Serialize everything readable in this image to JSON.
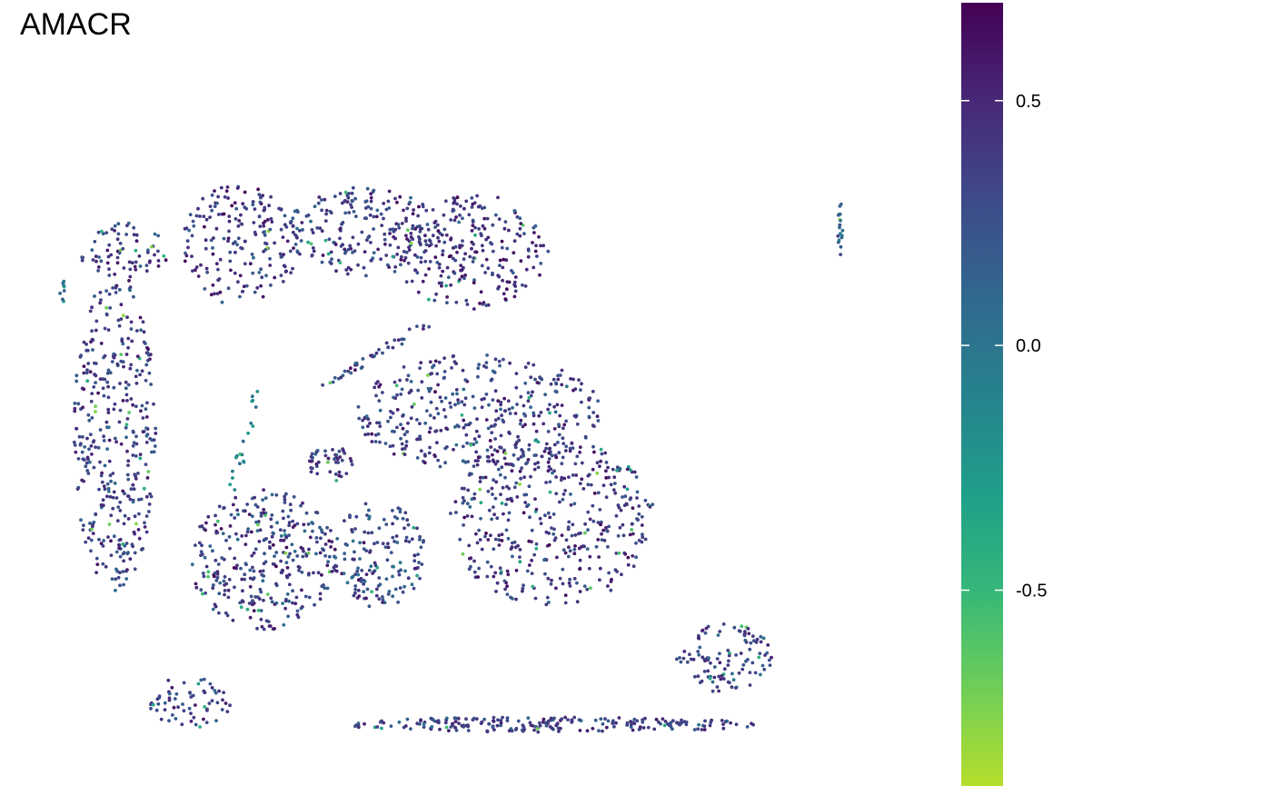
{
  "chart_data": {
    "type": "scatter",
    "title": "AMACR",
    "xlabel": "",
    "ylabel": "",
    "grid": false,
    "legend": "right",
    "colorbar": {
      "min": -0.9,
      "max": 0.7,
      "ticks": [
        {
          "value": 0.5,
          "label": "0.5"
        },
        {
          "value": 0.0,
          "label": "0.0"
        },
        {
          "value": -0.5,
          "label": "-0.5"
        }
      ],
      "colormap": "viridis-reversed",
      "colors": [
        "#440154",
        "#482878",
        "#3e4a89",
        "#31688e",
        "#26828e",
        "#1f9e89",
        "#35b779",
        "#6ece58",
        "#b5de2b"
      ]
    },
    "clusters": [
      {
        "cx": 8,
        "cy": 75,
        "rx": 5.5,
        "ry": 4.5,
        "count": 70,
        "mean": 0.38
      },
      {
        "cx": 22,
        "cy": 76,
        "rx": 7,
        "ry": 9.5,
        "count": 190,
        "mean": 0.4
      },
      {
        "cx": 37,
        "cy": 78,
        "rx": 9.5,
        "ry": 7,
        "count": 210,
        "mean": 0.35
      },
      {
        "cx": 50,
        "cy": 75,
        "rx": 9.5,
        "ry": 9,
        "count": 240,
        "mean": 0.42
      },
      {
        "cx": 6.8,
        "cy": 47,
        "rx": 5,
        "ry": 25,
        "count": 380,
        "mean": 0.35
      },
      {
        "cx": 51,
        "cy": 50,
        "rx": 15,
        "ry": 9,
        "count": 380,
        "mean": 0.35
      },
      {
        "cx": 60,
        "cy": 33,
        "rx": 12.5,
        "ry": 13,
        "count": 420,
        "mean": 0.38
      },
      {
        "cx": 25,
        "cy": 27,
        "rx": 9,
        "ry": 11,
        "count": 330,
        "mean": 0.35
      },
      {
        "cx": 39,
        "cy": 28,
        "rx": 5.5,
        "ry": 8.5,
        "count": 150,
        "mean": 0.3
      },
      {
        "cx": 33,
        "cy": 42,
        "rx": 2.8,
        "ry": 2.8,
        "count": 45,
        "mean": 0.4
      },
      {
        "cx": 81,
        "cy": 12,
        "rx": 6,
        "ry": 5.5,
        "count": 110,
        "mean": 0.35
      },
      {
        "cx": 16,
        "cy": 5,
        "rx": 5,
        "ry": 4,
        "count": 65,
        "mean": 0.35
      },
      {
        "cx": 60,
        "cy": 1.5,
        "rx": 25,
        "ry": 1.2,
        "count": 220,
        "mean": 0.35
      },
      {
        "cx": 95,
        "cy": 79,
        "rx": 0.3,
        "ry": 5,
        "count": 18,
        "mean": 0.1
      },
      {
        "cx": 0.4,
        "cy": 69,
        "rx": 0.3,
        "ry": 2.5,
        "count": 8,
        "mean": 0.0
      }
    ],
    "strands": [
      {
        "x1": 32,
        "y1": 54,
        "x2": 45,
        "y2": 64,
        "count": 40,
        "mean": 0.35
      },
      {
        "x1": 21,
        "y1": 38,
        "x2": 24,
        "y2": 53,
        "count": 20,
        "mean": -0.1
      }
    ]
  }
}
